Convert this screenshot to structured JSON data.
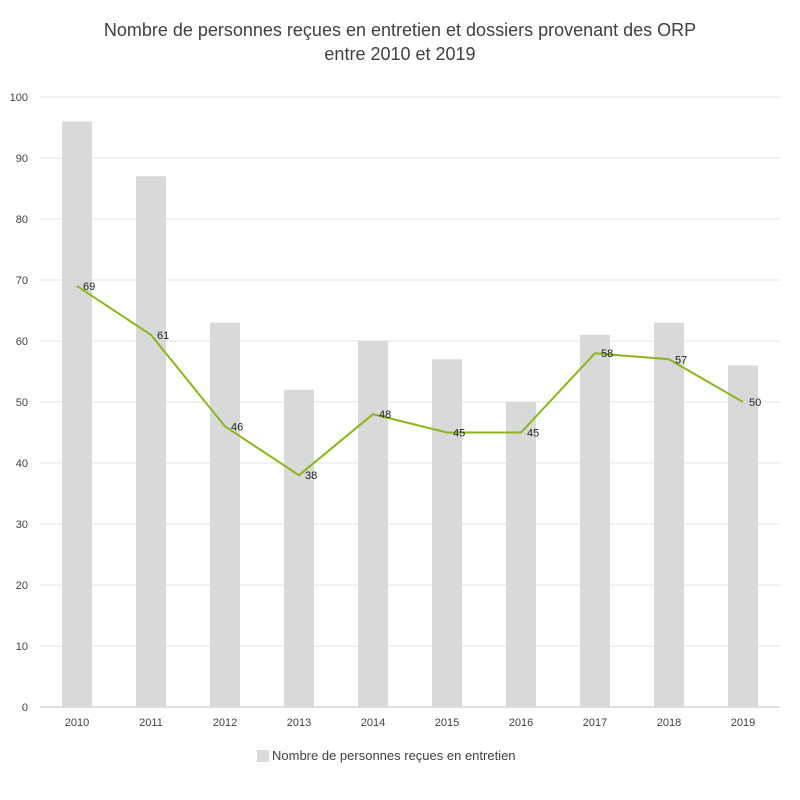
{
  "chart_data": {
    "type": "bar",
    "title_line1": "Nombre de personnes reçues en entretien et dossiers provenant des ORP",
    "title_line2": "entre 2010 et 2019",
    "categories": [
      "2010",
      "2011",
      "2012",
      "2013",
      "2014",
      "2015",
      "2016",
      "2017",
      "2018",
      "2019"
    ],
    "series": [
      {
        "name": "Nombre de personnes reçues en entretien",
        "kind": "bar",
        "color": "#d9d9d9",
        "values": [
          96,
          87,
          63,
          52,
          60,
          57,
          50,
          61,
          63,
          56
        ]
      },
      {
        "name": "",
        "kind": "line",
        "color": "#8db51a",
        "values": [
          69,
          61,
          46,
          38,
          48,
          45,
          45,
          58,
          57,
          50
        ],
        "data_labels": [
          "69",
          "61",
          "46",
          "38",
          "48",
          "45",
          "45",
          "58",
          "57",
          "50"
        ]
      }
    ],
    "y_ticks": [
      "0",
      "10",
      "20",
      "30",
      "40",
      "50",
      "60",
      "70",
      "80",
      "90",
      "100"
    ],
    "ylim": [
      0,
      100
    ],
    "grid": true,
    "legend": {
      "position": "bottom",
      "label": "Nombre de personnes reçues en entretien"
    }
  }
}
